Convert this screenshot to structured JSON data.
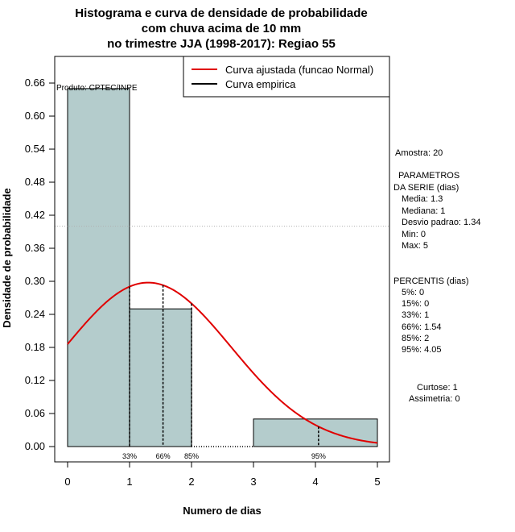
{
  "chart_data": {
    "type": "histogram",
    "title_lines": [
      "Histograma e curva de densidade de probabilidade",
      "com chuva acima de 10 mm",
      "no trimestre JJA (1998-2017): Regiao 55"
    ],
    "xlabel": "Numero de dias",
    "ylabel": "Densidade de probabilidade",
    "xlim": [
      0,
      5
    ],
    "ylim": [
      0,
      0.66
    ],
    "x_ticks": [
      "0",
      "1",
      "2",
      "3",
      "4",
      "5"
    ],
    "y_ticks": [
      "0.00",
      "0.06",
      "0.12",
      "0.18",
      "0.24",
      "0.30",
      "0.36",
      "0.42",
      "0.48",
      "0.54",
      "0.60",
      "0.66"
    ],
    "y_tick_values": [
      0,
      0.06,
      0.12,
      0.18,
      0.24,
      0.3,
      0.36,
      0.42,
      0.48,
      0.54,
      0.6,
      0.66
    ],
    "bins": [
      {
        "x0": 0,
        "x1": 1,
        "density": 0.65
      },
      {
        "x0": 1,
        "x1": 2,
        "density": 0.25
      },
      {
        "x0": 2,
        "x1": 3,
        "density": 0.0
      },
      {
        "x0": 3,
        "x1": 5,
        "density": 0.05
      }
    ],
    "fitted_curve": {
      "name": "Curva ajustada (funcao Normal)",
      "mean": 1.3,
      "sd": 1.34,
      "color": "#e00000"
    },
    "empirical_curve": {
      "name": "Curva empirica",
      "color": "#000000"
    },
    "bar_color": "#b4cccc",
    "reference_line_y": 0.4,
    "percentile_markers": [
      {
        "label": "33%",
        "x": 1.0
      },
      {
        "label": "66%",
        "x": 1.54
      },
      {
        "label": "85%",
        "x": 2.0
      },
      {
        "label": "95%",
        "x": 4.05
      }
    ],
    "credit": "Produto: CPTEC/INPE"
  },
  "info_panel": {
    "sample": "Amostra: 20",
    "params_title_1": "PARAMETROS",
    "params_title_2": "DA SERIE (dias)",
    "media": "Media: 1.3",
    "mediana": "Mediana: 1",
    "desvio": "Desvio padrao: 1.34",
    "min": "Min: 0",
    "max": "Max: 5",
    "percentis_title": "PERCENTIS (dias)",
    "p5": "5%: 0",
    "p15": "15%: 0",
    "p33": "33%: 1",
    "p66": "66%: 1.54",
    "p85": "85%: 2",
    "p95": "95%: 4.05",
    "curtose": "Curtose: 1",
    "assimetria": "Assimetria: 0"
  }
}
